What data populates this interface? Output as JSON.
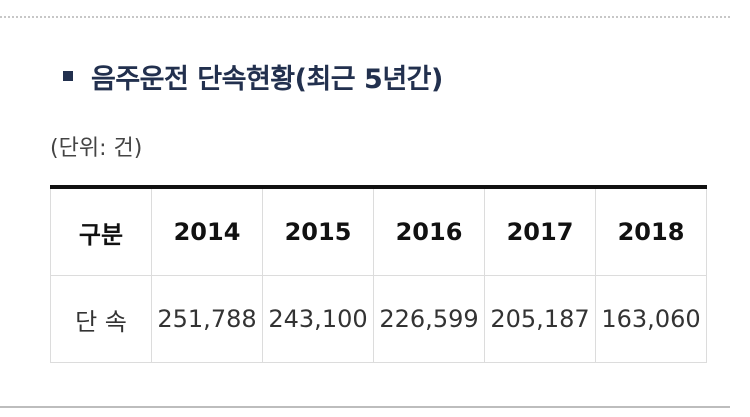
{
  "heading": {
    "title": "음주운전 단속현황(최근 5년간)"
  },
  "unit_label": "(단위: 건)",
  "table": {
    "header_label": "구분",
    "years": [
      "2014",
      "2015",
      "2016",
      "2017",
      "2018"
    ],
    "row_label": "단 속",
    "values": [
      "251,788",
      "243,100",
      "226,599",
      "205,187",
      "163,060"
    ]
  }
}
